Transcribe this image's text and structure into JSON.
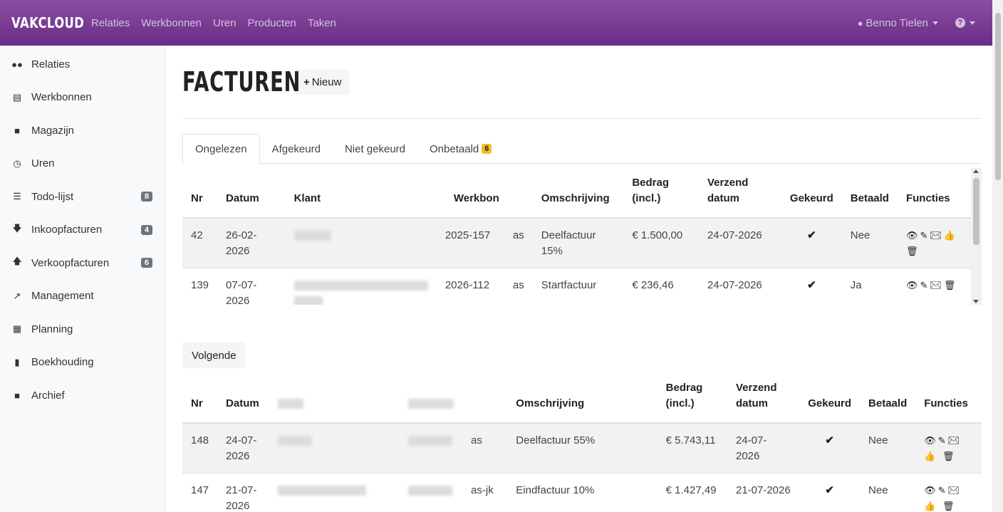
{
  "navbar": {
    "brand": "VAKCLOUD",
    "links": [
      "Relaties",
      "Werkbonnen",
      "Uren",
      "Producten",
      "Taken"
    ],
    "user": "Benno Tielen",
    "help_icon": "?"
  },
  "sidebar": {
    "items": [
      {
        "label": "Relaties",
        "icon": "users-icon"
      },
      {
        "label": "Werkbonnen",
        "icon": "list-icon"
      },
      {
        "label": "Magazijn",
        "icon": "archive-icon"
      },
      {
        "label": "Uren",
        "icon": "clock-icon"
      },
      {
        "label": "Todo-lijst",
        "icon": "tasks-icon",
        "badge": "8"
      },
      {
        "label": "Inkoopfacturen",
        "icon": "arrow-down-icon",
        "badge": "4"
      },
      {
        "label": "Verkoopfacturen",
        "icon": "arrow-up-icon",
        "badge": "6"
      },
      {
        "label": "Management",
        "icon": "chart-icon"
      },
      {
        "label": "Planning",
        "icon": "calendar-icon"
      },
      {
        "label": "Boekhouding",
        "icon": "book-icon"
      },
      {
        "label": "Archief",
        "icon": "archive-icon"
      }
    ]
  },
  "main": {
    "title": "FACTUREN",
    "new_button": "Nieuw",
    "tabs": [
      {
        "label": "Ongelezen",
        "active": true
      },
      {
        "label": "Afgekeurd"
      },
      {
        "label": "Niet gekeurd"
      },
      {
        "label": "Onbetaald",
        "badge": "6"
      }
    ],
    "table1": {
      "headers": {
        "nr": "Nr",
        "datum": "Datum",
        "klant": "Klant",
        "werkbon": "Werkbon",
        "omschrijving": "Omschrijving",
        "bedrag1": "Bedrag",
        "bedrag2": "(incl.)",
        "verzend1": "Verzend",
        "verzend2": "datum",
        "gekeurd": "Gekeurd",
        "betaald": "Betaald",
        "functies": "Functies"
      },
      "rows": [
        {
          "nr": "42",
          "datum1": "26-02-",
          "datum2": "2026",
          "werkbon": "2025-157",
          "code": "as",
          "omschrijving": "Deelfactuur 15%",
          "bedrag": "€ 1.500,00",
          "verzend": "24-07-2026",
          "gekeurd": "✔",
          "betaald": "Nee",
          "functies": "👁✎✉👍 🗑"
        },
        {
          "nr": "139",
          "datum1": "07-07-",
          "datum2": "2026",
          "werkbon": "2026-112",
          "code": "as",
          "omschrijving": "Startfactuur",
          "bedrag": "€ 236,46",
          "verzend": "24-07-2026",
          "gekeurd": "✔",
          "betaald": "Ja",
          "functies": "👁✎✉🗑"
        }
      ]
    },
    "next_button": "Volgende",
    "table2": {
      "headers": {
        "nr": "Nr",
        "datum": "Datum",
        "omschrijving": "Omschrijving",
        "bedrag1": "Bedrag",
        "bedrag2": "(incl.)",
        "verzend1": "Verzend",
        "verzend2": "datum",
        "gekeurd": "Gekeurd",
        "betaald": "Betaald",
        "functies": "Functies"
      },
      "rows": [
        {
          "nr": "148",
          "datum1": "24-07-",
          "datum2": "2026",
          "code": "as",
          "omschrijving": "Deelfactuur 55%",
          "bedrag": "€ 5.743,11",
          "verzend1": "24-07-",
          "verzend2": "2026",
          "gekeurd": "✔",
          "betaald": "Nee",
          "functies": "👁✎✉👍 🗑"
        },
        {
          "nr": "147",
          "datum1": "21-07-",
          "datum2": "2026",
          "code": "as-jk",
          "omschrijving": "Eindfactuur 10%",
          "bedrag": "€ 1.427,49",
          "verzend1": "21-07-2026",
          "verzend2": "",
          "gekeurd": "✔",
          "betaald": "Nee",
          "functies": "👁✎✉👍 🗑"
        }
      ]
    }
  }
}
